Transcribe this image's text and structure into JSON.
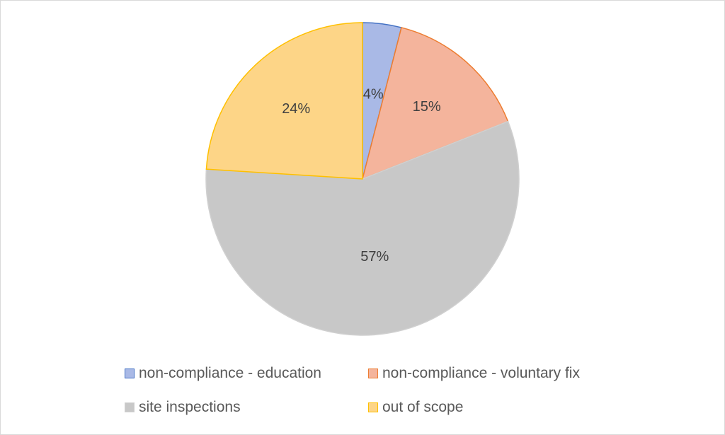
{
  "chart_data": {
    "type": "pie",
    "title": "",
    "slices": [
      {
        "label": "non-compliance - education",
        "value": 4,
        "display": "4%",
        "color": "#a9b9e6",
        "stroke": "#4472c4"
      },
      {
        "label": "non-compliance - voluntary fix",
        "value": 15,
        "display": "15%",
        "color": "#f4b49c",
        "stroke": "#ed7d31"
      },
      {
        "label": "site inspections",
        "value": 57,
        "display": "57%",
        "color": "#c8c8c8",
        "stroke": "#d0d0d0"
      },
      {
        "label": "out of scope",
        "value": 24,
        "display": "24%",
        "color": "#fdd587",
        "stroke": "#ffc000"
      }
    ],
    "start_angle": "12 o'clock",
    "direction": "clockwise",
    "legend_position": "bottom"
  }
}
